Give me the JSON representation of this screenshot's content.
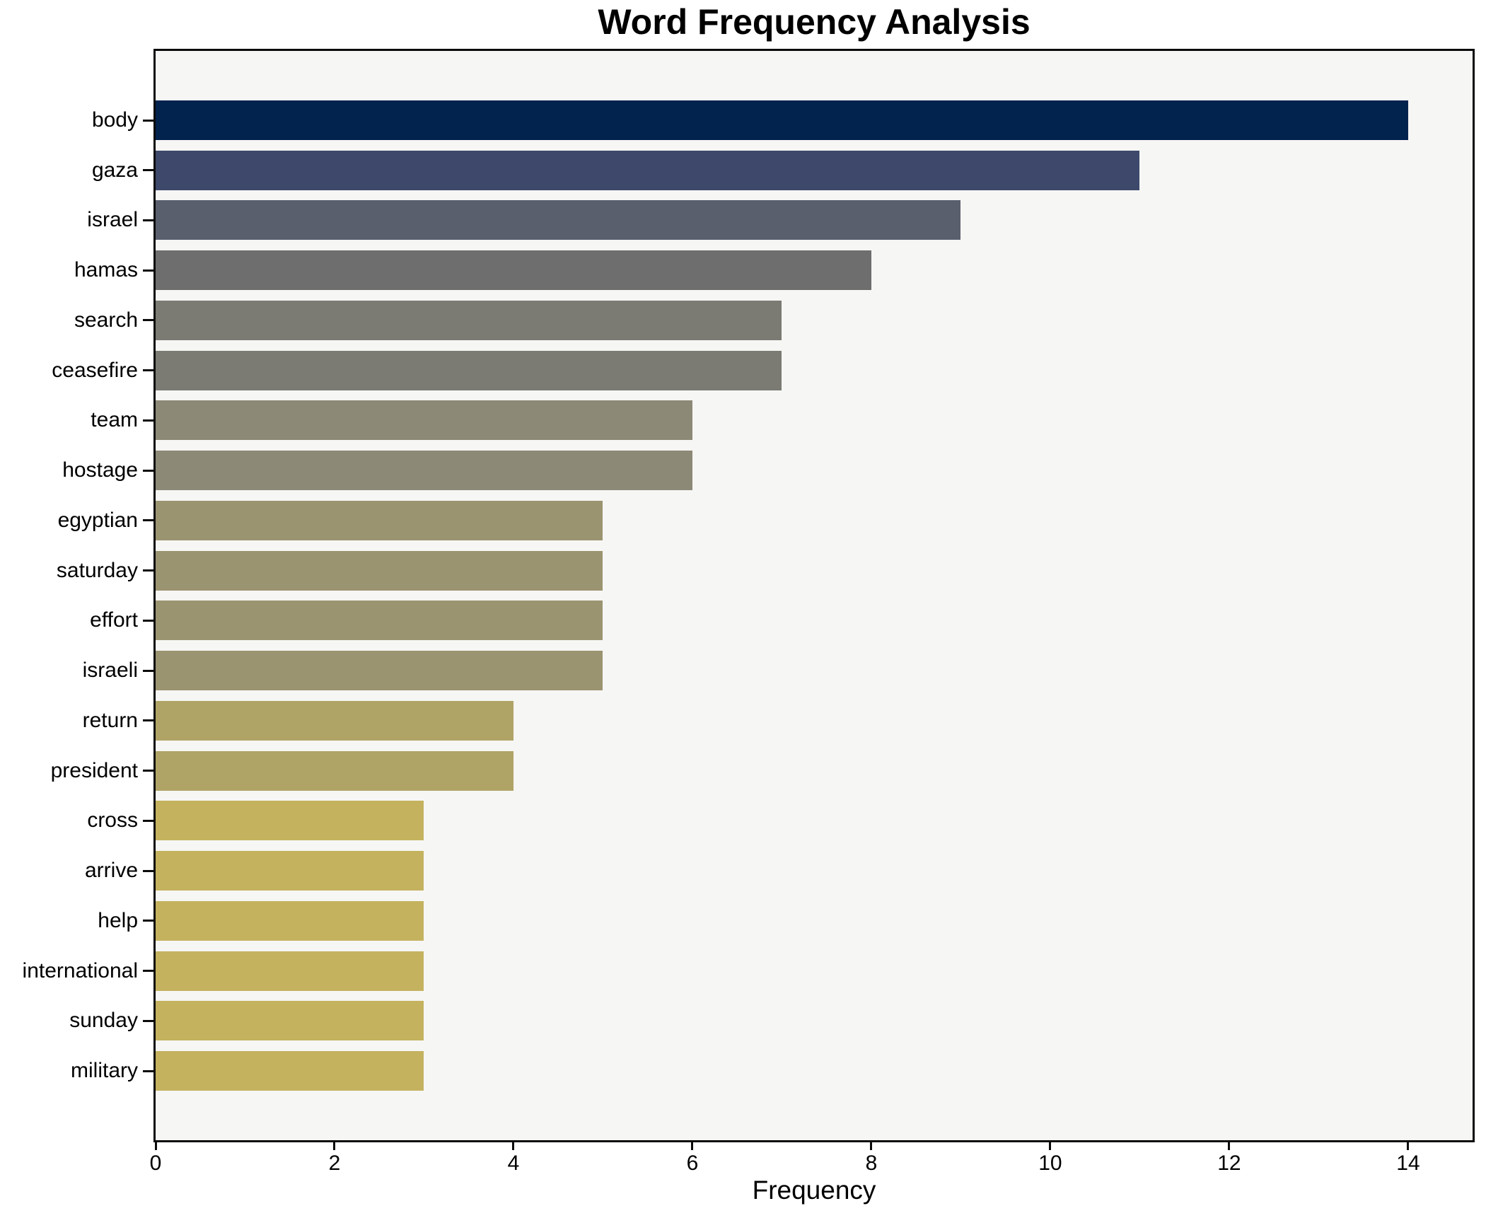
{
  "chart_data": {
    "type": "bar",
    "orientation": "horizontal",
    "title": "Word Frequency Analysis",
    "xlabel": "Frequency",
    "ylabel": "",
    "categories": [
      "body",
      "gaza",
      "israel",
      "hamas",
      "search",
      "ceasefire",
      "team",
      "hostage",
      "egyptian",
      "saturday",
      "effort",
      "israeli",
      "return",
      "president",
      "cross",
      "arrive",
      "help",
      "international",
      "sunday",
      "military"
    ],
    "values": [
      14,
      11,
      9,
      8,
      7,
      7,
      6,
      6,
      5,
      5,
      5,
      5,
      4,
      4,
      3,
      3,
      3,
      3,
      3,
      3
    ],
    "bar_colors": [
      "#03234f",
      "#3d486b",
      "#5a5f6e",
      "#6d6e6d",
      "#7b7a73",
      "#7b7a73",
      "#8d8977",
      "#8d8977",
      "#9b9470",
      "#9b9470",
      "#9b9470",
      "#9b9470",
      "#b0a366",
      "#b0a366",
      "#c4b25f",
      "#c4b25f",
      "#c4b25f",
      "#c4b25f",
      "#c4b25f",
      "#c4b25f"
    ],
    "xlim": [
      0,
      14.72
    ],
    "xticks": [
      0,
      2,
      4,
      6,
      8,
      10,
      12,
      14
    ],
    "grid": false,
    "legend": "none",
    "plot_background": "#f6f6f4",
    "figure_background": "#ffffff",
    "spine_color": "#0b0b0b",
    "colormap": "cividis-reversed-by-value"
  }
}
